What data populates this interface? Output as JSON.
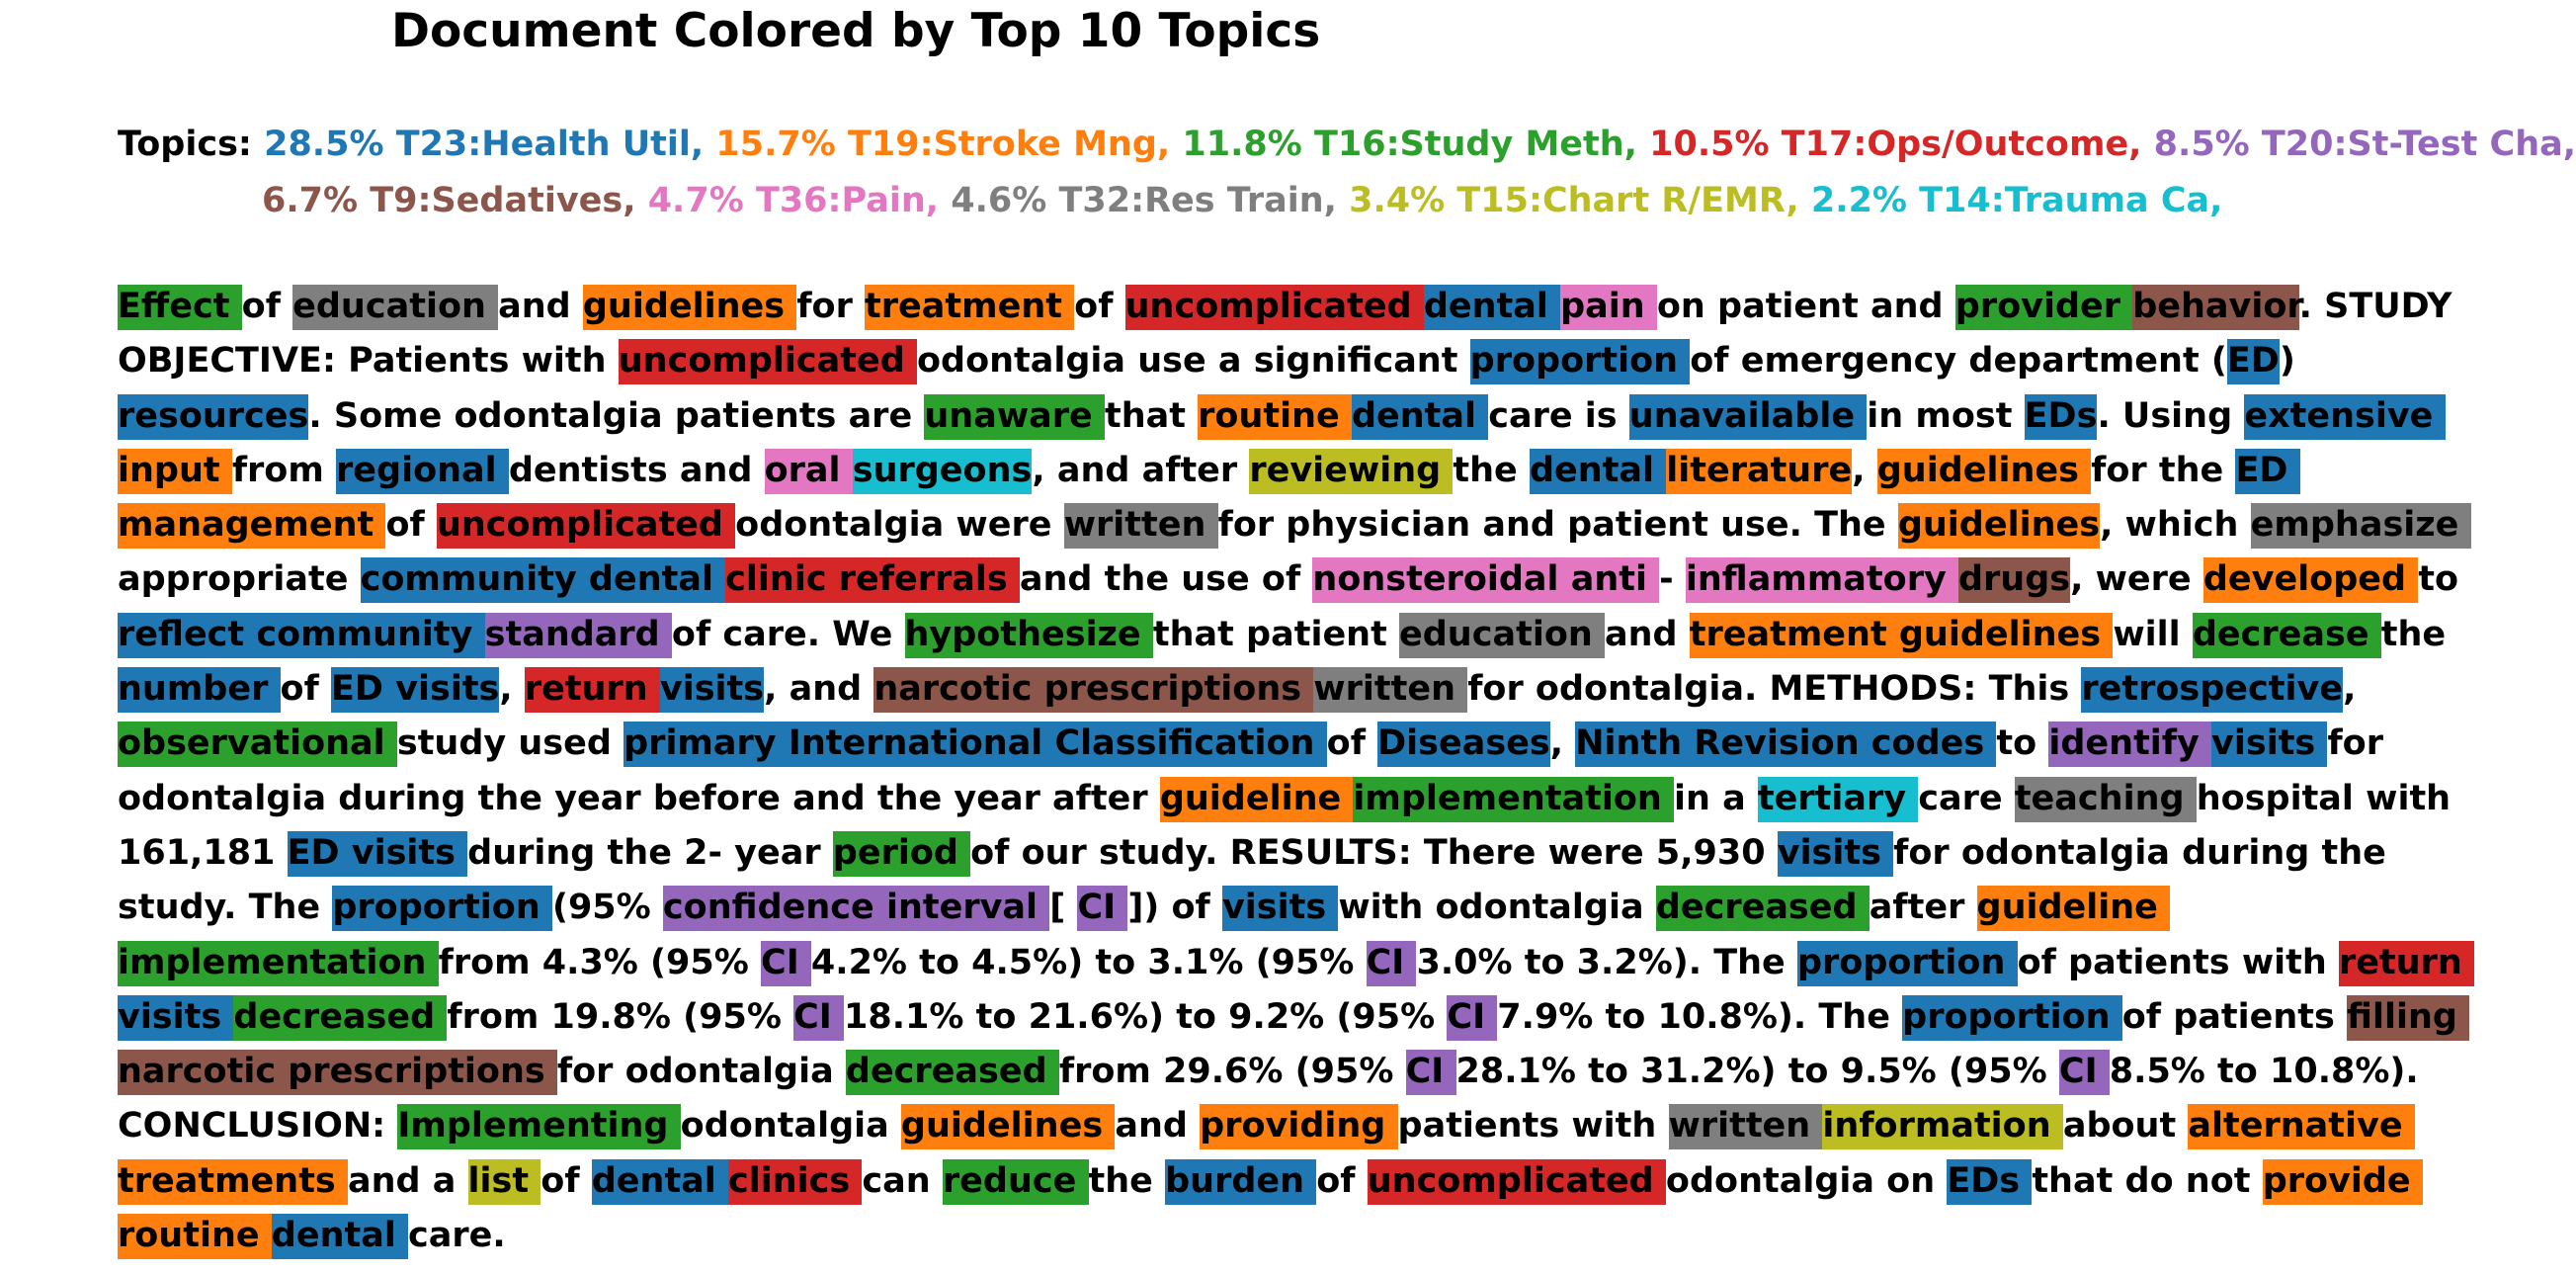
{
  "title": "Document Colored by Top 10 Topics",
  "topics_label": "Topics:",
  "topics": [
    {
      "label": "28.5% T23:Health Util,",
      "color": "#1f77b4"
    },
    {
      "label": "15.7% T19:Stroke Mng,",
      "color": "#ff7f0e"
    },
    {
      "label": "11.8% T16:Study Meth,",
      "color": "#2ca02c"
    },
    {
      "label": "10.5% T17:Ops/Outcome,",
      "color": "#d62728"
    },
    {
      "label": "8.5% T20:St-Test Cha,",
      "color": "#9467bd"
    },
    {
      "label": "6.7% T9:Sedatives,",
      "color": "#8c564b"
    },
    {
      "label": "4.7% T36:Pain,",
      "color": "#e377c2"
    },
    {
      "label": "4.6% T32:Res Train,",
      "color": "#7f7f7f"
    },
    {
      "label": "3.4% T15:Chart R/EMR,",
      "color": "#bcbd22"
    },
    {
      "label": "2.2% T14:Trauma Ca,",
      "color": "#17becf"
    }
  ],
  "lines": [
    [
      [
        "Effect ",
        2
      ],
      [
        "of ",
        -1
      ],
      [
        "education ",
        7
      ],
      [
        "and ",
        -1
      ],
      [
        "guidelines ",
        1
      ],
      [
        "for ",
        -1
      ],
      [
        "treatment ",
        1
      ],
      [
        "of ",
        -1
      ],
      [
        "uncomplicated ",
        3
      ],
      [
        "dental ",
        0
      ],
      [
        "pain ",
        6
      ],
      [
        "on patient and ",
        -1
      ],
      [
        "provider ",
        2
      ],
      [
        "behavior",
        5
      ],
      [
        ". STUDY",
        -1
      ]
    ],
    [
      [
        "OBJECTIVE: Patients with ",
        -1
      ],
      [
        "uncomplicated ",
        3
      ],
      [
        "odontalgia use a significant ",
        -1
      ],
      [
        "proportion ",
        0
      ],
      [
        "of emergency department (",
        -1
      ],
      [
        "ED",
        0
      ],
      [
        ")",
        -1
      ]
    ],
    [
      [
        "resources",
        0
      ],
      [
        ". Some odontalgia patients are ",
        -1
      ],
      [
        "unaware ",
        2
      ],
      [
        "that ",
        -1
      ],
      [
        "routine ",
        1
      ],
      [
        "dental ",
        0
      ],
      [
        "care is ",
        -1
      ],
      [
        "unavailable ",
        0
      ],
      [
        "in most ",
        -1
      ],
      [
        "EDs",
        0
      ],
      [
        ". Using ",
        -1
      ],
      [
        "extensive ",
        0
      ]
    ],
    [
      [
        "input ",
        1
      ],
      [
        "from ",
        -1
      ],
      [
        "regional ",
        0
      ],
      [
        "dentists and ",
        -1
      ],
      [
        "oral ",
        6
      ],
      [
        "surgeons",
        9
      ],
      [
        ", and after ",
        -1
      ],
      [
        "reviewing ",
        8
      ],
      [
        "the ",
        -1
      ],
      [
        "dental ",
        0
      ],
      [
        "literature",
        1
      ],
      [
        ", ",
        -1
      ],
      [
        "guidelines ",
        1
      ],
      [
        "for the ",
        -1
      ],
      [
        "ED ",
        0
      ]
    ],
    [
      [
        "management ",
        1
      ],
      [
        "of ",
        -1
      ],
      [
        "uncomplicated ",
        3
      ],
      [
        "odontalgia were ",
        -1
      ],
      [
        "written ",
        7
      ],
      [
        "for physician and patient use. The ",
        -1
      ],
      [
        "guidelines",
        1
      ],
      [
        ", which ",
        -1
      ],
      [
        "emphasize ",
        7
      ]
    ],
    [
      [
        "appropriate ",
        -1
      ],
      [
        "community ",
        0
      ],
      [
        "dental ",
        0
      ],
      [
        "clinic ",
        3
      ],
      [
        "referrals ",
        3
      ],
      [
        "and the use of ",
        -1
      ],
      [
        "nonsteroidal ",
        6
      ],
      [
        "anti ",
        6
      ],
      [
        "- ",
        -1
      ],
      [
        "inflammatory ",
        6
      ],
      [
        "drugs",
        5
      ],
      [
        ", were ",
        -1
      ],
      [
        "developed ",
        1
      ],
      [
        "to",
        -1
      ]
    ],
    [
      [
        "reflect ",
        0
      ],
      [
        "community ",
        0
      ],
      [
        "standard ",
        4
      ],
      [
        "of care. We ",
        -1
      ],
      [
        "hypothesize ",
        2
      ],
      [
        "that patient ",
        -1
      ],
      [
        "education ",
        7
      ],
      [
        "and ",
        -1
      ],
      [
        "treatment ",
        1
      ],
      [
        "guidelines ",
        1
      ],
      [
        "will ",
        -1
      ],
      [
        "decrease ",
        2
      ],
      [
        "the",
        -1
      ]
    ],
    [
      [
        "number ",
        0
      ],
      [
        "of ",
        -1
      ],
      [
        "ED ",
        0
      ],
      [
        "visits",
        0
      ],
      [
        ", ",
        -1
      ],
      [
        "return ",
        3
      ],
      [
        "visits",
        0
      ],
      [
        ", and ",
        -1
      ],
      [
        "narcotic ",
        5
      ],
      [
        "prescriptions ",
        5
      ],
      [
        "written ",
        7
      ],
      [
        "for odontalgia. METHODS: This ",
        -1
      ],
      [
        "retrospective",
        0
      ],
      [
        ",",
        -1
      ]
    ],
    [
      [
        "observational ",
        2
      ],
      [
        "study used ",
        -1
      ],
      [
        "primary ",
        0
      ],
      [
        "International ",
        0
      ],
      [
        "Classification ",
        0
      ],
      [
        "of ",
        -1
      ],
      [
        "Diseases",
        0
      ],
      [
        ", ",
        -1
      ],
      [
        "Ninth ",
        0
      ],
      [
        "Revision ",
        0
      ],
      [
        "codes ",
        0
      ],
      [
        "to ",
        -1
      ],
      [
        "identify ",
        4
      ],
      [
        "visits ",
        0
      ],
      [
        "for",
        -1
      ]
    ],
    [
      [
        "odontalgia during the year before and the year after ",
        -1
      ],
      [
        "guideline ",
        1
      ],
      [
        "implementation ",
        2
      ],
      [
        "in a ",
        -1
      ],
      [
        "tertiary ",
        9
      ],
      [
        "care ",
        -1
      ],
      [
        "teaching ",
        7
      ],
      [
        "hospital with",
        -1
      ]
    ],
    [
      [
        "161,181 ",
        -1
      ],
      [
        "ED ",
        0
      ],
      [
        "visits ",
        0
      ],
      [
        "during the 2- year ",
        -1
      ],
      [
        "period ",
        2
      ],
      [
        "of our study. RESULTS: There were 5,930 ",
        -1
      ],
      [
        "visits ",
        0
      ],
      [
        "for odontalgia during the",
        -1
      ]
    ],
    [
      [
        "study. The ",
        -1
      ],
      [
        "proportion ",
        0
      ],
      [
        "(95% ",
        -1
      ],
      [
        "confidence ",
        4
      ],
      [
        "interval ",
        4
      ],
      [
        "[ ",
        -1
      ],
      [
        "CI ",
        4
      ],
      [
        "]) of ",
        -1
      ],
      [
        "visits ",
        0
      ],
      [
        "with odontalgia ",
        -1
      ],
      [
        "decreased ",
        2
      ],
      [
        "after ",
        -1
      ],
      [
        "guideline ",
        1
      ]
    ],
    [
      [
        "implementation ",
        2
      ],
      [
        "from 4.3% (95% ",
        -1
      ],
      [
        "CI ",
        4
      ],
      [
        "4.2% to 4.5%) to 3.1% (95% ",
        -1
      ],
      [
        "CI ",
        4
      ],
      [
        "3.0% to 3.2%). The ",
        -1
      ],
      [
        "proportion ",
        0
      ],
      [
        "of patients with ",
        -1
      ],
      [
        "return ",
        3
      ]
    ],
    [
      [
        "visits ",
        0
      ],
      [
        "decreased ",
        2
      ],
      [
        "from 19.8% (95% ",
        -1
      ],
      [
        "CI ",
        4
      ],
      [
        "18.1% to 21.6%) to 9.2% (95% ",
        -1
      ],
      [
        "CI ",
        4
      ],
      [
        "7.9% to 10.8%). The ",
        -1
      ],
      [
        "proportion ",
        0
      ],
      [
        "of patients ",
        -1
      ],
      [
        "filling ",
        5
      ]
    ],
    [
      [
        "narcotic ",
        5
      ],
      [
        "prescriptions ",
        5
      ],
      [
        "for odontalgia ",
        -1
      ],
      [
        "decreased ",
        2
      ],
      [
        "from 29.6% (95% ",
        -1
      ],
      [
        "CI ",
        4
      ],
      [
        "28.1% to 31.2%) to 9.5% (95% ",
        -1
      ],
      [
        "CI ",
        4
      ],
      [
        "8.5% to 10.8%).",
        -1
      ]
    ],
    [
      [
        "CONCLUSION: ",
        -1
      ],
      [
        "Implementing ",
        2
      ],
      [
        "odontalgia ",
        -1
      ],
      [
        "guidelines ",
        1
      ],
      [
        "and ",
        -1
      ],
      [
        "providing ",
        1
      ],
      [
        "patients with ",
        -1
      ],
      [
        "written ",
        7
      ],
      [
        "information ",
        8
      ],
      [
        "about ",
        -1
      ],
      [
        "alternative ",
        1
      ]
    ],
    [
      [
        "treatments ",
        1
      ],
      [
        "and a ",
        -1
      ],
      [
        "list ",
        8
      ],
      [
        "of ",
        -1
      ],
      [
        "dental ",
        0
      ],
      [
        "clinics ",
        3
      ],
      [
        "can ",
        -1
      ],
      [
        "reduce ",
        2
      ],
      [
        "the ",
        -1
      ],
      [
        "burden ",
        0
      ],
      [
        "of ",
        -1
      ],
      [
        "uncomplicated ",
        3
      ],
      [
        "odontalgia on ",
        -1
      ],
      [
        "EDs ",
        0
      ],
      [
        "that do not ",
        -1
      ],
      [
        "provide ",
        1
      ]
    ],
    [
      [
        "routine ",
        1
      ],
      [
        "dental ",
        0
      ],
      [
        "care.",
        -1
      ]
    ]
  ]
}
